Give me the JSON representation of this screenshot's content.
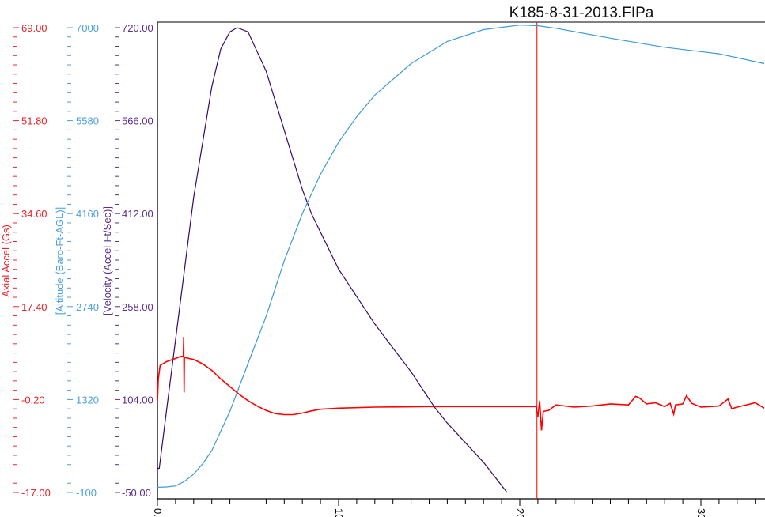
{
  "chart_data": {
    "type": "line",
    "title": "K185-8-31-2013.FIPa",
    "x_ticks": [
      "0.",
      "10",
      "20",
      "30"
    ],
    "x_tick_values": [
      0,
      10,
      20,
      30
    ],
    "xlim": [
      0,
      33.5
    ],
    "grid": false,
    "legend": "none",
    "marker_line": {
      "x": 20.95,
      "color": "#ff0000"
    },
    "axes": [
      {
        "id": "acc",
        "label": "Axial Accel (Gs)",
        "color": "#e8252c",
        "ylim": [
          -17,
          69
        ],
        "ticks": [
          "69.00",
          "51.80",
          "34.60",
          "17.40",
          "-0.20",
          "-17.00"
        ]
      },
      {
        "id": "alt",
        "label": "[Altitude (Baro-Ft-AGL)]",
        "color": "#4a9fe0",
        "ylim": [
          -100,
          7000
        ],
        "ticks": [
          "7000",
          "5580",
          "4160",
          "2740",
          "1320",
          "-100"
        ]
      },
      {
        "id": "vel",
        "label": "[Velocity (Accel-Ft/Sec)]",
        "color": "#5b2d8e",
        "ylim": [
          -50,
          720
        ],
        "ticks": [
          "720.00",
          "566.00",
          "412.00",
          "258.00",
          "104.00",
          "-50.00"
        ]
      }
    ],
    "series": [
      {
        "axis": "vel",
        "color": "#35096a",
        "points": [
          [
            0,
            -10
          ],
          [
            0.1,
            -10
          ],
          [
            0.5,
            85
          ],
          [
            1,
            203
          ],
          [
            2,
            439
          ],
          [
            3,
            622
          ],
          [
            3.5,
            685
          ],
          [
            4,
            713
          ],
          [
            4.4,
            720
          ],
          [
            5,
            713
          ],
          [
            6,
            648
          ],
          [
            7,
            550
          ],
          [
            8,
            452
          ],
          [
            8.5,
            412
          ],
          [
            10,
            320
          ],
          [
            12,
            229
          ],
          [
            14,
            150
          ],
          [
            15.3,
            91
          ],
          [
            16,
            65
          ],
          [
            18,
            0
          ],
          [
            19.3,
            -50
          ]
        ]
      },
      {
        "axis": "alt",
        "color": "#3a9ad9",
        "points": [
          [
            0,
            -20
          ],
          [
            0.5,
            -15
          ],
          [
            1,
            0
          ],
          [
            1.5,
            70
          ],
          [
            2,
            180
          ],
          [
            2.5,
            340
          ],
          [
            3,
            540
          ],
          [
            4,
            1140
          ],
          [
            5,
            1870
          ],
          [
            6,
            2590
          ],
          [
            7,
            3440
          ],
          [
            8,
            4160
          ],
          [
            9,
            4760
          ],
          [
            10,
            5250
          ],
          [
            11,
            5640
          ],
          [
            12,
            5970
          ],
          [
            14,
            6450
          ],
          [
            16,
            6790
          ],
          [
            18,
            6970
          ],
          [
            20,
            7040
          ],
          [
            21,
            7030
          ],
          [
            22,
            6990
          ],
          [
            25,
            6840
          ],
          [
            28,
            6700
          ],
          [
            31,
            6600
          ],
          [
            33.5,
            6450
          ]
        ]
      },
      {
        "axis": "acc",
        "color": "#ff0000",
        "points": [
          [
            0,
            -0.2
          ],
          [
            0.05,
            4
          ],
          [
            0.15,
            6.5
          ],
          [
            0.5,
            7.2
          ],
          [
            1,
            7.8
          ],
          [
            1.3,
            8.2
          ],
          [
            1.43,
            8.2
          ],
          [
            1.45,
            11.8
          ],
          [
            1.47,
            1.5
          ],
          [
            1.49,
            8
          ],
          [
            2,
            7.6
          ],
          [
            2.5,
            6.8
          ],
          [
            3,
            5.6
          ],
          [
            3.5,
            4
          ],
          [
            4,
            2.6
          ],
          [
            4.5,
            1.2
          ],
          [
            5,
            0
          ],
          [
            5.5,
            -1
          ],
          [
            6,
            -1.8
          ],
          [
            6.5,
            -2.4
          ],
          [
            7,
            -2.6
          ],
          [
            7.5,
            -2.6
          ],
          [
            8,
            -2.3
          ],
          [
            8.5,
            -1.9
          ],
          [
            9,
            -1.6
          ],
          [
            10,
            -1.4
          ],
          [
            12,
            -1.2
          ],
          [
            15,
            -1.1
          ],
          [
            18,
            -1.1
          ],
          [
            20.9,
            -1.1
          ],
          [
            21,
            -3
          ],
          [
            21.1,
            0
          ],
          [
            21.2,
            -5.5
          ],
          [
            21.3,
            -2
          ],
          [
            21.6,
            -1.8
          ],
          [
            22,
            -0.8
          ],
          [
            23,
            -1.2
          ],
          [
            24,
            -1
          ],
          [
            25,
            -0.6
          ],
          [
            26,
            -0.8
          ],
          [
            26.4,
            0.8
          ],
          [
            26.6,
            0.5
          ],
          [
            27,
            -0.6
          ],
          [
            27.5,
            -0.4
          ],
          [
            28,
            -1.1
          ],
          [
            28.3,
            -0.5
          ],
          [
            28.5,
            -2.5
          ],
          [
            28.6,
            -0.8
          ],
          [
            29,
            -0.6
          ],
          [
            29.2,
            0.9
          ],
          [
            29.5,
            -0.5
          ],
          [
            30,
            -1.2
          ],
          [
            31,
            -1
          ],
          [
            31.5,
            0.3
          ],
          [
            31.7,
            -1.5
          ],
          [
            32,
            -1.2
          ],
          [
            33,
            -0.4
          ],
          [
            33.5,
            -1.4
          ]
        ]
      }
    ]
  }
}
